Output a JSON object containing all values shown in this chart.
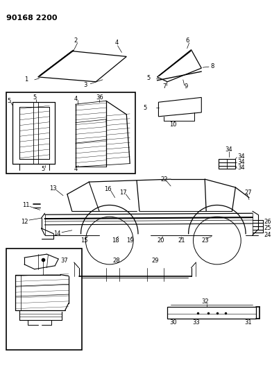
{
  "title": "90168 2200",
  "bg_color": "#ffffff",
  "line_color": "#000000",
  "fig_width": 3.92,
  "fig_height": 5.33,
  "dpi": 100
}
